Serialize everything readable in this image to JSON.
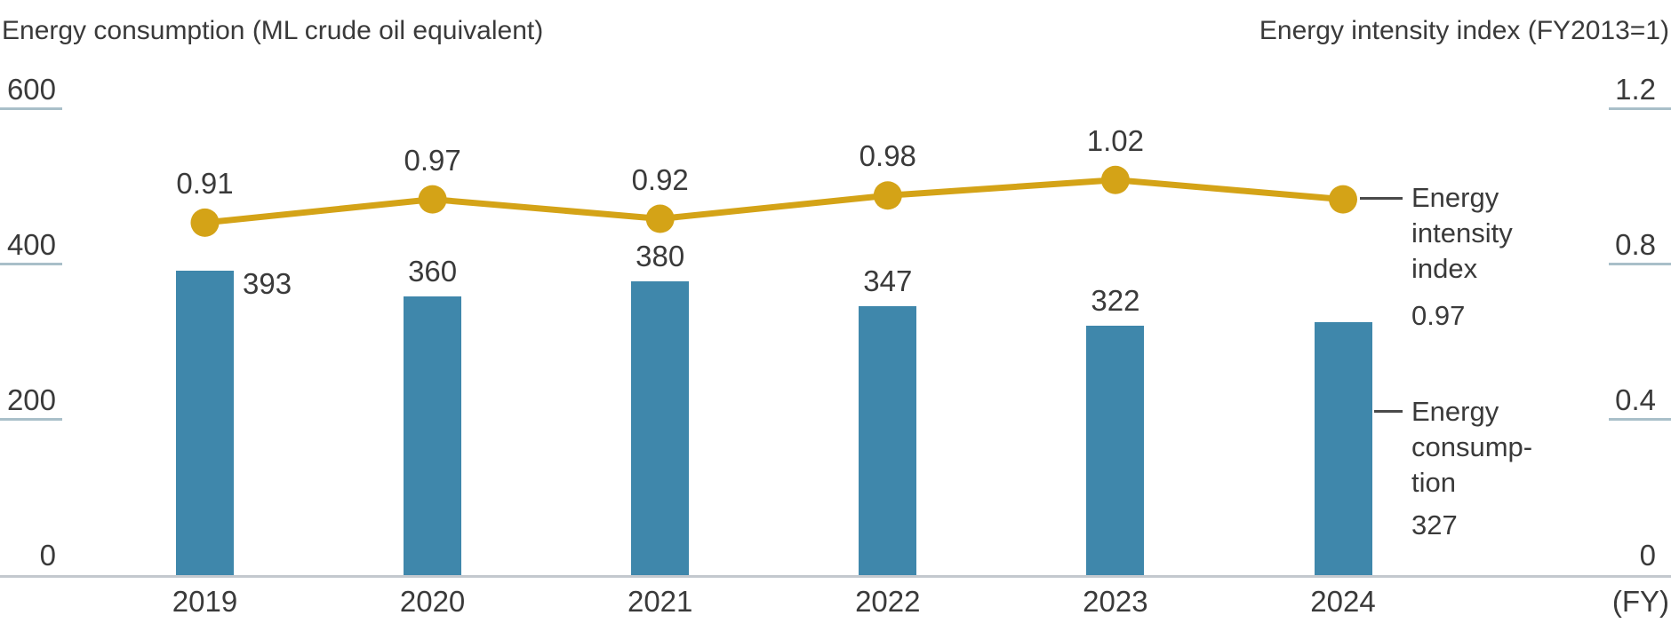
{
  "chart_data": {
    "type": "combo",
    "categories": [
      "2019",
      "2020",
      "2021",
      "2022",
      "2023",
      "2024"
    ],
    "x_unit_label": "(FY)",
    "series": [
      {
        "name": "Energy consumption",
        "chart_type": "bar",
        "axis": "left",
        "values": [
          393,
          360,
          380,
          347,
          322,
          327
        ],
        "data_labels": [
          "393",
          "360",
          "380",
          "347",
          "322",
          "327"
        ],
        "label_placement": [
          "right-of-bar",
          "above",
          "above",
          "above",
          "above",
          "in-legend"
        ],
        "color": "#3f87ab"
      },
      {
        "name": "Energy intensity index",
        "chart_type": "line",
        "axis": "right",
        "values": [
          0.91,
          0.97,
          0.92,
          0.98,
          1.02,
          0.97
        ],
        "data_labels": [
          "0.91",
          "0.97",
          "0.92",
          "0.98",
          "1.02",
          "0.97"
        ],
        "label_placement": [
          "above",
          "above",
          "above",
          "above",
          "above",
          "in-legend"
        ],
        "color": "#d4a317"
      }
    ],
    "left_axis": {
      "title": "Energy consumption (ML crude oil equivalent)",
      "range": [
        0,
        600
      ],
      "ticks": [
        0,
        200,
        400,
        600
      ],
      "tick_labels": [
        "0",
        "200",
        "400",
        "600"
      ]
    },
    "right_axis": {
      "title": "Energy intensity index (FY2013=1)",
      "range": [
        0,
        1.2
      ],
      "ticks": [
        0,
        0.4,
        0.8,
        1.2
      ],
      "tick_labels": [
        "0",
        "0.4",
        "0.8",
        "1.2"
      ]
    },
    "grid": false,
    "legend_position": "right",
    "legend": [
      {
        "series": "Energy intensity index",
        "label_lines": [
          "Energy",
          "intensity",
          "index"
        ],
        "value": "0.97"
      },
      {
        "series": "Energy consumption",
        "label_lines": [
          "Energy",
          "consump-",
          "tion"
        ],
        "value": "327"
      }
    ]
  },
  "colors": {
    "bar": "#3f87ab",
    "line": "#d4a317",
    "text": "#3a3a3a",
    "tick_line": "#a9bfc9",
    "axis_line": "#c3c8ce",
    "legend_connector": "#4a4a4a",
    "background": "#ffffff"
  }
}
